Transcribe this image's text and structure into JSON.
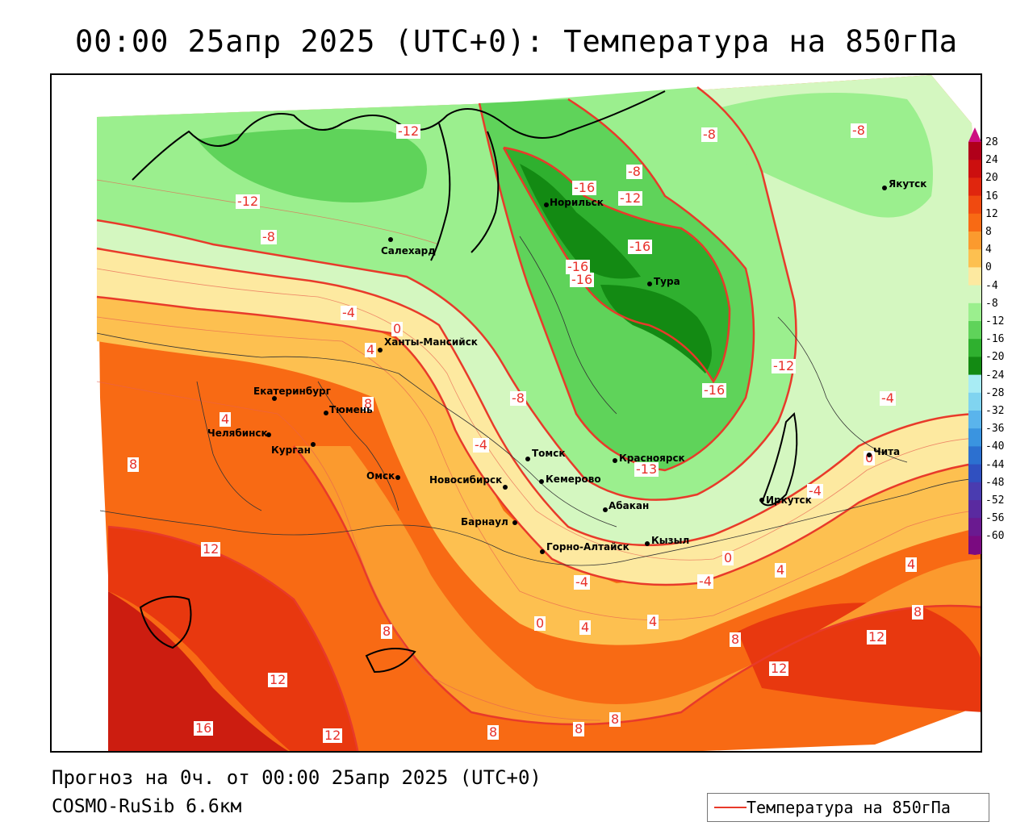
{
  "title": "00:00 25апр 2025 (UTC+0): Температура на 850гПа",
  "footer": {
    "forecast": "Прогноз на 0ч. от 00:00 25апр 2025 (UTC+0)",
    "model": "COSMO-RuSib 6.6км"
  },
  "legend": {
    "label": "Температура на 850гПа",
    "line_color": "#e83a2a"
  },
  "colorbar": {
    "labels": [
      "28",
      "24",
      "20",
      "16",
      "12",
      "8",
      "4",
      "0",
      "-4",
      "-8",
      "-12",
      "-16",
      "-20",
      "-24",
      "-28",
      "-32",
      "-36",
      "-40",
      "-44",
      "-48",
      "-52",
      "-56",
      "-60"
    ],
    "colors": [
      "#b0001a",
      "#cc0f0f",
      "#e0260e",
      "#f04a10",
      "#f86a14",
      "#fb9a2e",
      "#fdc050",
      "#fde9a0",
      "#d4f7c0",
      "#9bef8e",
      "#5fd35a",
      "#2fb02f",
      "#138a13",
      "#a8ecf4",
      "#80d4f0",
      "#5ab4ec",
      "#3a94e0",
      "#2c70d0",
      "#3050c0",
      "#4a3cb0",
      "#5a2aa0",
      "#6a1a90",
      "#7a0a80"
    ]
  },
  "cities": [
    {
      "name": "Норильск"
    },
    {
      "name": "Якутск"
    },
    {
      "name": "Салехард"
    },
    {
      "name": "Тура"
    },
    {
      "name": "Ханты-Мансийск"
    },
    {
      "name": "Екатеринбург"
    },
    {
      "name": "Тюмень"
    },
    {
      "name": "Челябинск"
    },
    {
      "name": "Курган"
    },
    {
      "name": "Омск"
    },
    {
      "name": "Новосибирск"
    },
    {
      "name": "Томск"
    },
    {
      "name": "Кемерово"
    },
    {
      "name": "Красноярск"
    },
    {
      "name": "Барнаул"
    },
    {
      "name": "Абакан"
    },
    {
      "name": "Горно-Алтайск"
    },
    {
      "name": "Кызыл"
    },
    {
      "name": "Иркутск"
    },
    {
      "name": "Чита"
    }
  ],
  "isotherm_labels": [
    "-12",
    "-8",
    "-8",
    "-8",
    "-16",
    "-12",
    "-16",
    "-16",
    "-16",
    "-12",
    "-16",
    "-12",
    "-8",
    "-4",
    "-4",
    "-13",
    "-4",
    "-8",
    "0",
    "-4",
    "0",
    "4",
    "8",
    "4",
    "4",
    "8",
    "12",
    "8",
    "12",
    "16",
    "12",
    "8",
    "8",
    "8",
    "0",
    "4",
    "8",
    "4",
    "12",
    "12",
    "8",
    "4",
    "-4",
    "-4",
    "0"
  ]
}
